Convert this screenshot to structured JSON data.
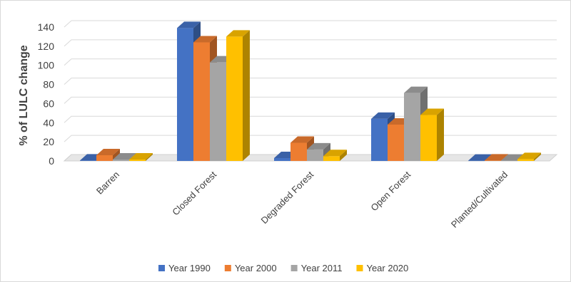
{
  "chart_data": {
    "type": "bar",
    "style": "3d-clustered-column",
    "categories": [
      "Barren",
      "Closed Forest",
      "Degraded Forest",
      "Open Forest",
      "Planted/Cultivated"
    ],
    "series": [
      {
        "name": "Year 1990",
        "color": "#4472c4",
        "values": [
          0.5,
          139,
          3,
          44,
          0.3
        ]
      },
      {
        "name": "Year 2000",
        "color": "#ed7d31",
        "values": [
          6,
          124,
          19,
          38,
          0.5
        ]
      },
      {
        "name": "Year 2011",
        "color": "#a5a5a5",
        "values": [
          1.5,
          103,
          12,
          71,
          0.3
        ]
      },
      {
        "name": "Year 2020",
        "color": "#ffc000",
        "values": [
          1.5,
          130,
          5,
          48,
          2
        ]
      }
    ],
    "title": "",
    "xlabel": "",
    "ylabel": "% of LULC change",
    "ylim": [
      0,
      140
    ],
    "yticks": [
      0,
      20,
      40,
      60,
      80,
      100,
      120,
      140
    ],
    "grid": true,
    "legend": "bottom"
  }
}
